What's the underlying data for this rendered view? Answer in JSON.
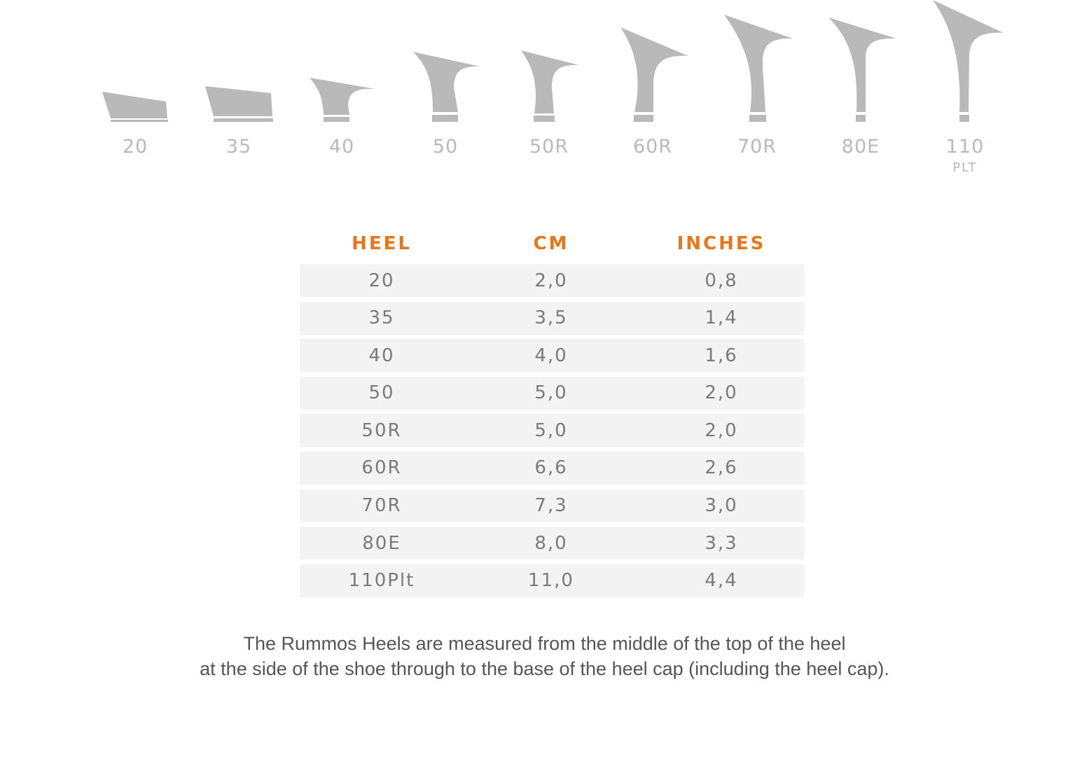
{
  "heel_styles": [
    {
      "label": "20",
      "sublabel": ""
    },
    {
      "label": "35",
      "sublabel": ""
    },
    {
      "label": "40",
      "sublabel": ""
    },
    {
      "label": "50",
      "sublabel": ""
    },
    {
      "label": "50R",
      "sublabel": ""
    },
    {
      "label": "60R",
      "sublabel": ""
    },
    {
      "label": "70R",
      "sublabel": ""
    },
    {
      "label": "80E",
      "sublabel": ""
    },
    {
      "label": "110",
      "sublabel": "PLT"
    }
  ],
  "table": {
    "headers": {
      "heel": "HEEL",
      "cm": "CM",
      "inches": "INCHES"
    },
    "rows": [
      {
        "heel": "20",
        "cm": "2,0",
        "inches": "0,8"
      },
      {
        "heel": "35",
        "cm": "3,5",
        "inches": "1,4"
      },
      {
        "heel": "40",
        "cm": "4,0",
        "inches": "1,6"
      },
      {
        "heel": "50",
        "cm": "5,0",
        "inches": "2,0"
      },
      {
        "heel": "50R",
        "cm": "5,0",
        "inches": "2,0"
      },
      {
        "heel": "60R",
        "cm": "6,6",
        "inches": "2,6"
      },
      {
        "heel": "70R",
        "cm": "7,3",
        "inches": "3,0"
      },
      {
        "heel": "80E",
        "cm": "8,0",
        "inches": "3,3"
      },
      {
        "heel": "110Plt",
        "cm": "11,0",
        "inches": "4,4"
      }
    ]
  },
  "note": {
    "line1": "The Rummos Heels are measured from the middle of the top of the heel",
    "line2": "at the side of the shoe through to the base of the heel cap (including the heel cap)."
  },
  "colors": {
    "accent": "#e8761a",
    "heel_gray": "#b9b9b9",
    "row_bg": "#f3f3f3",
    "cell_text": "#7a7a7a",
    "note_text": "#555555"
  }
}
